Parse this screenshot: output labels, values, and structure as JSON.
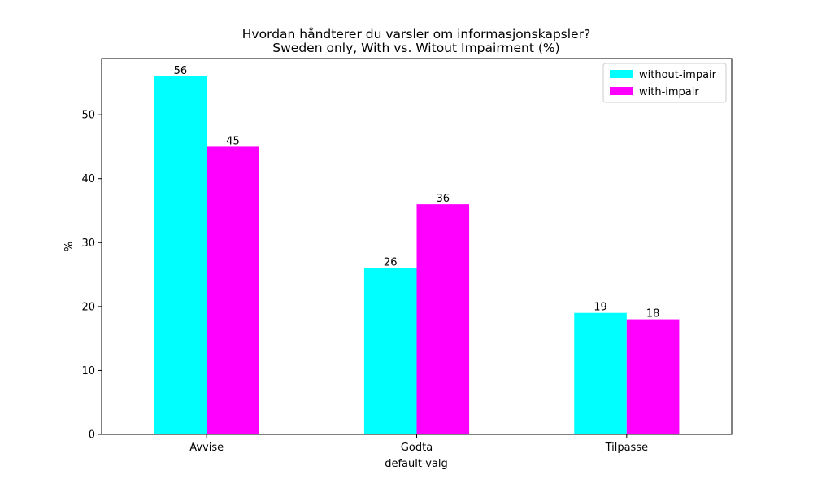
{
  "chart_data": {
    "type": "bar",
    "title": "Hvordan håndterer du varsler om informasjonskapsler?",
    "subtitle": "Sweden only, With vs. Witout Impairment (%)",
    "xlabel": "default-valg",
    "ylabel": "%",
    "categories": [
      "Avvise",
      "Godta",
      "Tilpasse"
    ],
    "series": [
      {
        "name": "without-impair",
        "values": [
          56,
          26,
          19
        ],
        "color": "#00ffff"
      },
      {
        "name": "with-impair",
        "values": [
          45,
          36,
          18
        ],
        "color": "#ff00ff"
      }
    ],
    "ylim": [
      0,
      58.8
    ],
    "yticks": [
      0,
      10,
      20,
      30,
      40,
      50
    ],
    "grid": false,
    "legend_position": "top-right"
  }
}
